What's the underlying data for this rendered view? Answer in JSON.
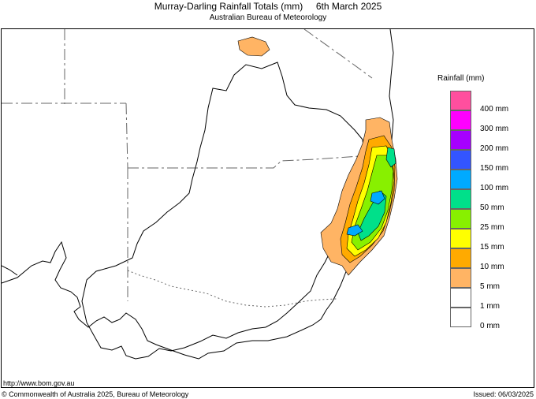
{
  "header": {
    "title": "Murray-Darling Rainfall Totals (mm)     6th March 2025",
    "subtitle": "Australian Bureau of Meteorology"
  },
  "legend": {
    "title": "Rainfall (mm)",
    "items": [
      {
        "label": "400 mm",
        "color": "#ff4f9e"
      },
      {
        "label": "300 mm",
        "color": "#ff00ff"
      },
      {
        "label": "200 mm",
        "color": "#a600ff"
      },
      {
        "label": "150 mm",
        "color": "#3355ff"
      },
      {
        "label": "100 mm",
        "color": "#00aaff"
      },
      {
        "label": "50 mm",
        "color": "#00e08a"
      },
      {
        "label": "25 mm",
        "color": "#88f000"
      },
      {
        "label": "15 mm",
        "color": "#ffff00"
      },
      {
        "label": "10 mm",
        "color": "#ffaa00"
      },
      {
        "label": "5 mm",
        "color": "#ffb464"
      },
      {
        "label": "1 mm",
        "color": "#ffffff"
      },
      {
        "label": "0 mm",
        "color": "#ffffff"
      }
    ]
  },
  "map": {
    "coast_color": "#000000",
    "border_color": "#666666",
    "basin_outline_color": "#000000"
  },
  "footer": {
    "url": "http://www.bom.gov.au",
    "copyright": "© Commonwealth of Australia 2025, Bureau of Meteorology",
    "issued": "Issued: 06/03/2025"
  }
}
